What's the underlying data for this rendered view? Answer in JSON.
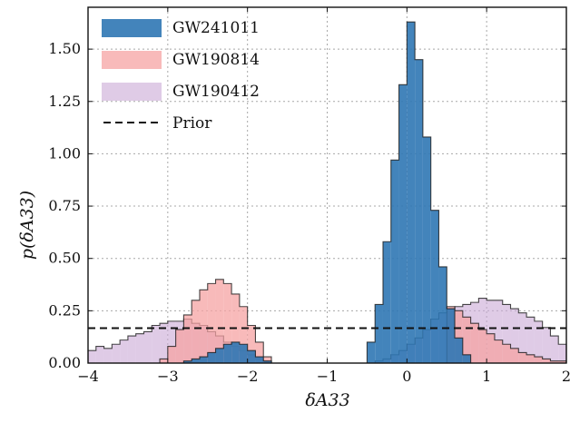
{
  "chart_data": {
    "type": "histogram",
    "xlabel": "δA33",
    "ylabel": "p(δA33)",
    "xlim": [
      -4,
      2
    ],
    "ylim": [
      0,
      1.7
    ],
    "xticks": [
      -4,
      -3,
      -2,
      -1,
      0,
      1,
      2
    ],
    "xtick_labels": [
      "−4",
      "−3",
      "−2",
      "−1",
      "0",
      "1",
      "2"
    ],
    "yticks": [
      0,
      0.25,
      0.5,
      0.75,
      1.0,
      1.25,
      1.5
    ],
    "ytick_labels": [
      "0.00",
      "0.25",
      "0.50",
      "0.75",
      "1.00",
      "1.25",
      "1.50"
    ],
    "grid": true,
    "legend_position": "top-left",
    "prior_value": 0.167,
    "series": [
      {
        "name": "GW190412",
        "color": "#c9a9d6",
        "edge": "#1a1a1a",
        "alpha": 0.6,
        "edges": [
          -4.0,
          -3.9,
          -3.8,
          -3.7,
          -3.6,
          -3.5,
          -3.4,
          -3.3,
          -3.2,
          -3.1,
          -3.0,
          -2.9,
          -2.8,
          -2.7,
          -2.6,
          -2.5,
          -2.4,
          -2.3,
          -2.2,
          -2.1,
          -2.0,
          -1.9,
          -1.8,
          -1.7,
          -1.6,
          -1.5,
          -1.4,
          -1.3,
          -1.2,
          -1.1,
          -1.0,
          -0.9,
          -0.8,
          -0.7,
          -0.6,
          -0.5,
          -0.4,
          -0.3,
          -0.2,
          -0.1,
          0.0,
          0.1,
          0.2,
          0.3,
          0.4,
          0.5,
          0.6,
          0.7,
          0.8,
          0.9,
          1.0,
          1.1,
          1.2,
          1.3,
          1.4,
          1.5,
          1.6,
          1.7,
          1.8,
          1.9,
          2.0
        ],
        "values": [
          0.06,
          0.08,
          0.07,
          0.09,
          0.11,
          0.13,
          0.14,
          0.15,
          0.18,
          0.19,
          0.2,
          0.2,
          0.21,
          0.19,
          0.18,
          0.15,
          0.13,
          0.1,
          0.08,
          0.06,
          0.04,
          0.02,
          0.01,
          0.0,
          0.0,
          0.0,
          0.0,
          0.0,
          0.0,
          0.0,
          0.0,
          0.0,
          0.0,
          0.0,
          0.0,
          0.0,
          0.01,
          0.02,
          0.04,
          0.06,
          0.09,
          0.12,
          0.16,
          0.21,
          0.24,
          0.26,
          0.27,
          0.28,
          0.29,
          0.31,
          0.3,
          0.3,
          0.28,
          0.26,
          0.24,
          0.22,
          0.2,
          0.17,
          0.13,
          0.09
        ]
      },
      {
        "name": "GW190814",
        "color": "#f5a3a3",
        "edge": "#1a1a1a",
        "alpha": 0.75,
        "edges": [
          -4.0,
          -3.9,
          -3.8,
          -3.7,
          -3.6,
          -3.5,
          -3.4,
          -3.3,
          -3.2,
          -3.1,
          -3.0,
          -2.9,
          -2.8,
          -2.7,
          -2.6,
          -2.5,
          -2.4,
          -2.3,
          -2.2,
          -2.1,
          -2.0,
          -1.9,
          -1.8,
          -1.7,
          -1.6,
          -1.5,
          -1.4,
          -1.3,
          -1.2,
          -1.1,
          -1.0,
          -0.9,
          -0.8,
          -0.7,
          -0.6,
          -0.5,
          -0.4,
          -0.3,
          -0.2,
          -0.1,
          0.0,
          0.1,
          0.2,
          0.3,
          0.4,
          0.5,
          0.6,
          0.7,
          0.8,
          0.9,
          1.0,
          1.1,
          1.2,
          1.3,
          1.4,
          1.5,
          1.6,
          1.7,
          1.8,
          1.9,
          2.0
        ],
        "values": [
          0.0,
          0.0,
          0.0,
          0.0,
          0.0,
          0.0,
          0.0,
          0.0,
          0.0,
          0.02,
          0.08,
          0.16,
          0.23,
          0.3,
          0.35,
          0.38,
          0.4,
          0.38,
          0.33,
          0.27,
          0.18,
          0.1,
          0.03,
          0.0,
          0.0,
          0.0,
          0.0,
          0.0,
          0.0,
          0.0,
          0.0,
          0.0,
          0.0,
          0.0,
          0.0,
          0.0,
          0.0,
          0.0,
          0.0,
          0.0,
          0.0,
          0.0,
          0.0,
          0.0,
          0.0,
          0.27,
          0.25,
          0.22,
          0.19,
          0.16,
          0.14,
          0.11,
          0.09,
          0.07,
          0.05,
          0.04,
          0.03,
          0.02,
          0.01,
          0.01
        ]
      },
      {
        "name": "GW241011",
        "color": "#2f77b4",
        "edge": "#1a1a1a",
        "alpha": 0.9,
        "edges": [
          -4.0,
          -3.9,
          -3.8,
          -3.7,
          -3.6,
          -3.5,
          -3.4,
          -3.3,
          -3.2,
          -3.1,
          -3.0,
          -2.9,
          -2.8,
          -2.7,
          -2.6,
          -2.5,
          -2.4,
          -2.3,
          -2.2,
          -2.1,
          -2.0,
          -1.9,
          -1.8,
          -1.7,
          -1.6,
          -1.5,
          -1.4,
          -1.3,
          -1.2,
          -1.1,
          -1.0,
          -0.9,
          -0.8,
          -0.7,
          -0.6,
          -0.5,
          -0.4,
          -0.3,
          -0.2,
          -0.1,
          0.0,
          0.1,
          0.2,
          0.3,
          0.4,
          0.5,
          0.6,
          0.7,
          0.8,
          0.9,
          1.0,
          1.1,
          1.2,
          1.3,
          1.4,
          1.5,
          1.6,
          1.7,
          1.8,
          1.9,
          2.0
        ],
        "values": [
          0.0,
          0.0,
          0.0,
          0.0,
          0.0,
          0.0,
          0.0,
          0.0,
          0.0,
          0.0,
          0.0,
          0.0,
          0.01,
          0.02,
          0.03,
          0.05,
          0.07,
          0.09,
          0.1,
          0.09,
          0.06,
          0.03,
          0.01,
          0.0,
          0.0,
          0.0,
          0.0,
          0.0,
          0.0,
          0.0,
          0.0,
          0.0,
          0.0,
          0.0,
          0.0,
          0.1,
          0.28,
          0.58,
          0.97,
          1.33,
          1.63,
          1.45,
          1.08,
          0.73,
          0.46,
          0.26,
          0.12,
          0.04,
          0.0,
          0.0,
          0.0,
          0.0,
          0.0,
          0.0,
          0.0,
          0.0,
          0.0,
          0.0,
          0.0,
          0.0
        ]
      }
    ]
  },
  "legend": {
    "items": [
      {
        "label": "GW241011",
        "color": "#2f77b4",
        "kind": "patch"
      },
      {
        "label": "GW190814",
        "color": "#f5a3a3",
        "kind": "patch"
      },
      {
        "label": "GW190412",
        "color": "#c9a9d6",
        "kind": "patch"
      },
      {
        "label": "Prior",
        "color": "#111111",
        "kind": "dashed-line"
      }
    ]
  }
}
